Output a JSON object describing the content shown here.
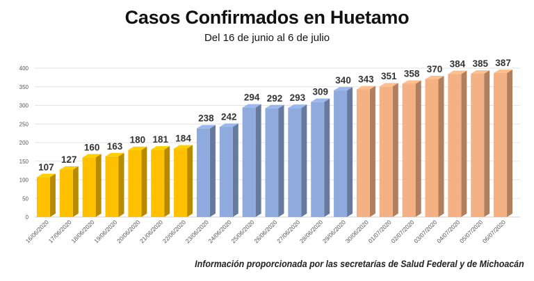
{
  "chart_data": {
    "type": "bar",
    "title": "Casos Confirmados en Huetamo",
    "subtitle": "Del 16 de junio al 6 de julio",
    "source": "Información proporcionada por las secretarías de Salud Federal y de Michoacán",
    "xlabel": "",
    "ylabel": "",
    "ylim": [
      0,
      400
    ],
    "yticks": [
      0,
      50,
      100,
      150,
      200,
      250,
      300,
      350,
      400
    ],
    "grid": true,
    "legend": "none",
    "categories": [
      "16/06/2020",
      "17/06/2020",
      "18/06/2020",
      "19/06/2020",
      "20/06/2020",
      "21/06/2020",
      "22/06/2020",
      "23/06/2020",
      "24/06/2020",
      "25/06/2020",
      "26/06/2020",
      "27/06/2020",
      "28/06/2020",
      "29/06/2020",
      "30/06/2020",
      "01/07/2020",
      "02/07/2020",
      "03/07/2020",
      "04/07/2020",
      "05/07/2020",
      "06/07/2020"
    ],
    "values": [
      107,
      127,
      160,
      163,
      180,
      181,
      184,
      238,
      242,
      294,
      292,
      293,
      309,
      340,
      343,
      351,
      358,
      370,
      384,
      385,
      387
    ],
    "bar_colors": [
      "#FFC000",
      "#FFC000",
      "#FFC000",
      "#FFC000",
      "#FFC000",
      "#FFC000",
      "#FFC000",
      "#8FAADC",
      "#8FAADC",
      "#8FAADC",
      "#8FAADC",
      "#8FAADC",
      "#8FAADC",
      "#8FAADC",
      "#F4B183",
      "#F4B183",
      "#F4B183",
      "#F4B183",
      "#F4B183",
      "#F4B183",
      "#F4B183"
    ]
  }
}
